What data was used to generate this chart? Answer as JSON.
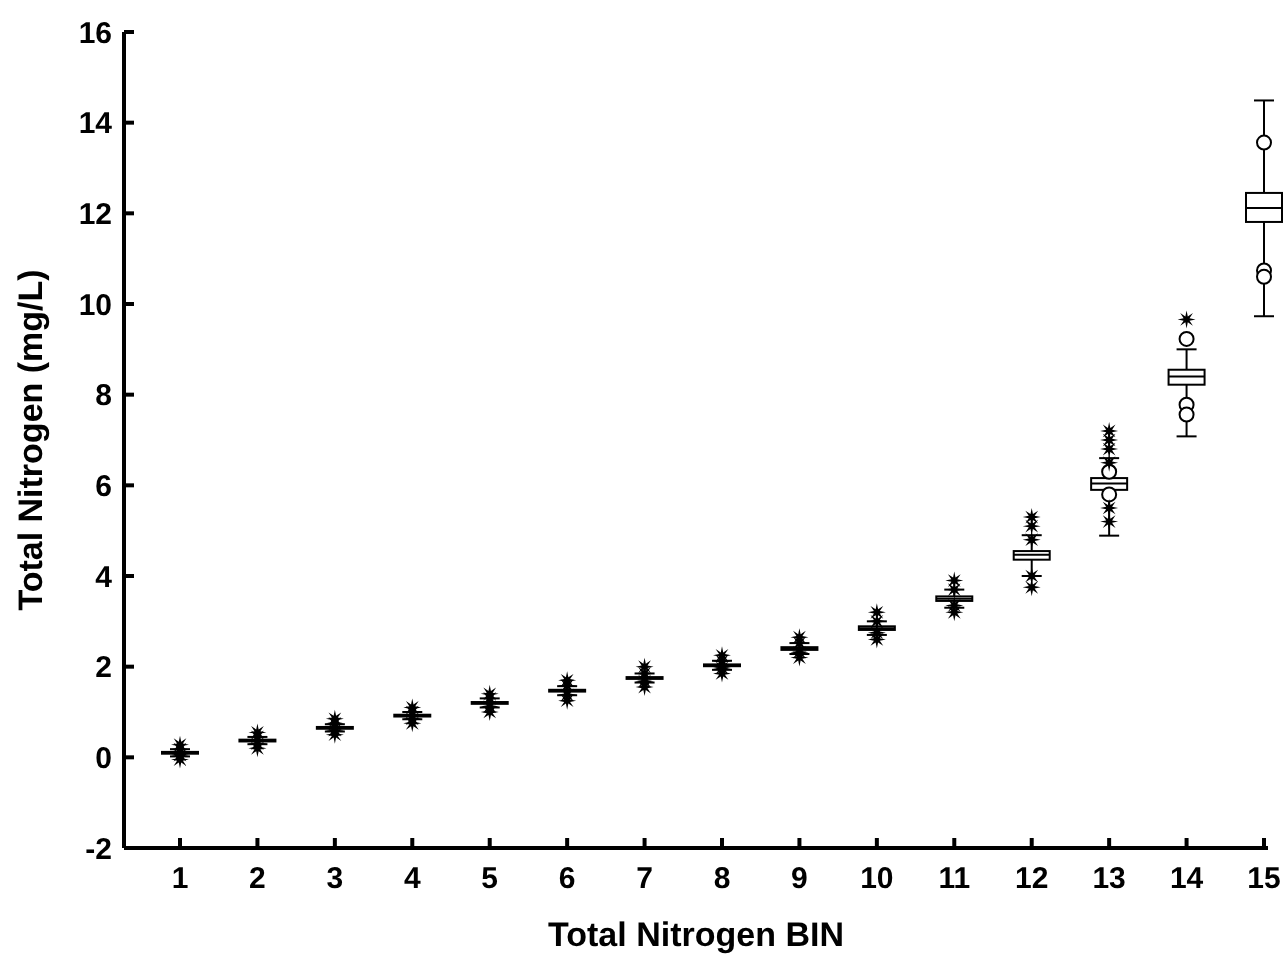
{
  "chart_data": {
    "type": "box",
    "xlabel": "Total Nitrogen BIN",
    "ylabel": "Total Nitrogen (mg/L)",
    "categories": [
      "1",
      "2",
      "3",
      "4",
      "5",
      "6",
      "7",
      "8",
      "9",
      "10",
      "11",
      "12",
      "13",
      "14",
      "15"
    ],
    "ylim": [
      -2,
      16
    ],
    "yticks": [
      -2,
      0,
      2,
      4,
      6,
      8,
      10,
      12,
      14,
      16
    ],
    "grid": false,
    "series": [
      {
        "color": "#000000",
        "boxes": [
          {
            "low": 0.02,
            "q1": 0.08,
            "median": 0.1,
            "q3": 0.12,
            "high": 0.18
          },
          {
            "low": 0.29,
            "q1": 0.35,
            "median": 0.37,
            "q3": 0.39,
            "high": 0.45
          },
          {
            "low": 0.57,
            "q1": 0.63,
            "median": 0.65,
            "q3": 0.67,
            "high": 0.73
          },
          {
            "low": 0.84,
            "q1": 0.9,
            "median": 0.92,
            "q3": 0.94,
            "high": 1.0
          },
          {
            "low": 1.1,
            "q1": 1.18,
            "median": 1.2,
            "q3": 1.22,
            "high": 1.3
          },
          {
            "low": 1.37,
            "q1": 1.45,
            "median": 1.47,
            "q3": 1.49,
            "high": 1.57
          },
          {
            "low": 1.65,
            "q1": 1.73,
            "median": 1.75,
            "q3": 1.77,
            "high": 1.85
          },
          {
            "low": 1.93,
            "q1": 2.01,
            "median": 2.03,
            "q3": 2.05,
            "high": 2.13
          },
          {
            "low": 2.28,
            "q1": 2.37,
            "median": 2.4,
            "q3": 2.43,
            "high": 2.52
          },
          {
            "low": 2.7,
            "q1": 2.81,
            "median": 2.85,
            "q3": 2.89,
            "high": 3.0
          },
          {
            "low": 3.3,
            "q1": 3.45,
            "median": 3.5,
            "q3": 3.55,
            "high": 3.7
          },
          {
            "low": 4.0,
            "q1": 4.36,
            "median": 4.47,
            "q3": 4.55,
            "high": 4.9
          },
          {
            "low": 4.89,
            "q1": 5.9,
            "median": 6.04,
            "q3": 6.16,
            "high": 6.6,
            "outliers": [
              6.3,
              5.8
            ]
          },
          {
            "low": 7.08,
            "q1": 8.22,
            "median": 8.4,
            "q3": 8.55,
            "high": 9.0,
            "outliers": [
              9.23,
              7.78,
              7.56
            ]
          },
          {
            "low": 9.73,
            "q1": 11.81,
            "median": 12.12,
            "q3": 12.45,
            "high": 14.49,
            "outliers": [
              13.56,
              10.74,
              10.6
            ]
          }
        ]
      },
      {
        "type": "scatter",
        "marker": "star",
        "color": "#000000",
        "x": [
          "1",
          "1",
          "1",
          "1",
          "2",
          "2",
          "2",
          "2",
          "3",
          "3",
          "3",
          "3",
          "4",
          "4",
          "4",
          "4",
          "5",
          "5",
          "5",
          "5",
          "6",
          "6",
          "6",
          "6",
          "7",
          "7",
          "7",
          "7",
          "8",
          "8",
          "8",
          "8",
          "9",
          "9",
          "9",
          "9",
          "10",
          "10",
          "10",
          "10",
          "11",
          "11",
          "11",
          "11",
          "12",
          "12",
          "12",
          "12",
          "12",
          "13",
          "13",
          "13",
          "13",
          "13",
          "13",
          "14"
        ],
        "values": [
          -0.05,
          0.05,
          0.18,
          0.28,
          0.2,
          0.3,
          0.45,
          0.55,
          0.5,
          0.6,
          0.75,
          0.85,
          0.75,
          0.85,
          1.0,
          1.1,
          1.0,
          1.12,
          1.3,
          1.4,
          1.25,
          1.38,
          1.58,
          1.7,
          1.55,
          1.68,
          1.85,
          2.0,
          1.85,
          1.97,
          2.12,
          2.25,
          2.2,
          2.32,
          2.52,
          2.65,
          2.6,
          2.75,
          3.0,
          3.2,
          3.2,
          3.35,
          3.7,
          3.9,
          3.75,
          4.0,
          4.8,
          5.1,
          5.3,
          5.2,
          5.5,
          6.5,
          6.8,
          7.0,
          7.2,
          9.66
        ]
      }
    ]
  }
}
